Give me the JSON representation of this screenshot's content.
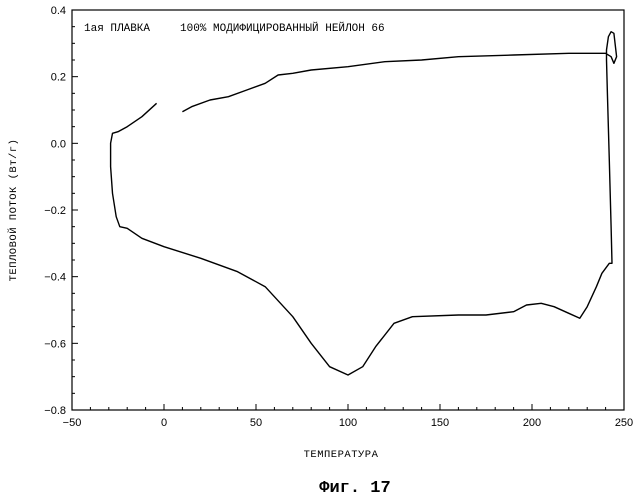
{
  "chart_data": {
    "type": "line",
    "title": "",
    "annotation_left": "1ая ПЛАВКА",
    "annotation_right": "100% МОДИФИЦИРОВАННЫЙ НЕЙЛОН 66",
    "xlabel": "ТЕМПЕРАТУРА",
    "ylabel": "ТЕПЛОВОЙ ПОТОК (Вт/г)",
    "xlim": [
      -50,
      250
    ],
    "ylim": [
      -0.8,
      0.4
    ],
    "x_ticks": [
      -50,
      0,
      50,
      100,
      150,
      200,
      250
    ],
    "x_tick_labels": [
      "−50",
      "0",
      "50",
      "100",
      "150",
      "200",
      "250"
    ],
    "y_ticks": [
      -0.8,
      -0.6,
      -0.4,
      -0.2,
      0.0,
      0.2,
      0.4
    ],
    "y_tick_labels": [
      "−0.8",
      "−0.6",
      "−0.4",
      "−0.2",
      "0.0",
      "0.2",
      "0.4"
    ],
    "grid": false,
    "caption": "Фиг. 17",
    "series": [
      {
        "segments": [
          [
            [
              -4,
              0.12
            ],
            [
              -12,
              0.08
            ],
            [
              -20,
              0.05
            ],
            [
              -25,
              0.035
            ],
            [
              -28,
              0.03
            ],
            [
              -29,
              0.0
            ],
            [
              -29,
              -0.07
            ],
            [
              -28,
              -0.15
            ],
            [
              -26,
              -0.22
            ],
            [
              -24,
              -0.25
            ],
            [
              -20,
              -0.255
            ],
            [
              -12,
              -0.285
            ],
            [
              0,
              -0.31
            ],
            [
              20,
              -0.345
            ],
            [
              40,
              -0.385
            ],
            [
              55,
              -0.43
            ],
            [
              70,
              -0.52
            ],
            [
              80,
              -0.6
            ],
            [
              90,
              -0.67
            ],
            [
              100,
              -0.695
            ],
            [
              108,
              -0.67
            ],
            [
              115,
              -0.61
            ],
            [
              125,
              -0.54
            ],
            [
              135,
              -0.52
            ],
            [
              160,
              -0.515
            ],
            [
              175,
              -0.515
            ],
            [
              190,
              -0.505
            ],
            [
              197,
              -0.485
            ],
            [
              205,
              -0.48
            ],
            [
              212,
              -0.49
            ],
            [
              220,
              -0.51
            ],
            [
              226,
              -0.525
            ],
            [
              230,
              -0.49
            ],
            [
              235,
              -0.43
            ],
            [
              238,
              -0.39
            ],
            [
              240,
              -0.375
            ],
            [
              242,
              -0.36
            ],
            [
              243.5,
              -0.36
            ],
            [
              243,
              -0.25
            ],
            [
              242,
              -0.05
            ],
            [
              241,
              0.15
            ],
            [
              240.5,
              0.25
            ],
            [
              240.5,
              0.28
            ],
            [
              241.5,
              0.32
            ],
            [
              243,
              0.335
            ],
            [
              244.5,
              0.33
            ],
            [
              246,
              0.26
            ],
            [
              244.5,
              0.24
            ],
            [
              243,
              0.26
            ],
            [
              240,
              0.27
            ],
            [
              220,
              0.27
            ],
            [
              190,
              0.265
            ],
            [
              160,
              0.26
            ],
            [
              140,
              0.25
            ],
            [
              120,
              0.245
            ],
            [
              100,
              0.23
            ],
            [
              80,
              0.22
            ],
            [
              70,
              0.21
            ],
            [
              62,
              0.205
            ],
            [
              55,
              0.18
            ],
            [
              45,
              0.16
            ],
            [
              35,
              0.14
            ],
            [
              25,
              0.13
            ],
            [
              15,
              0.11
            ],
            [
              10,
              0.095
            ]
          ]
        ]
      }
    ]
  },
  "colors": {
    "line": "#000000",
    "axis": "#000000",
    "background": "#ffffff"
  }
}
